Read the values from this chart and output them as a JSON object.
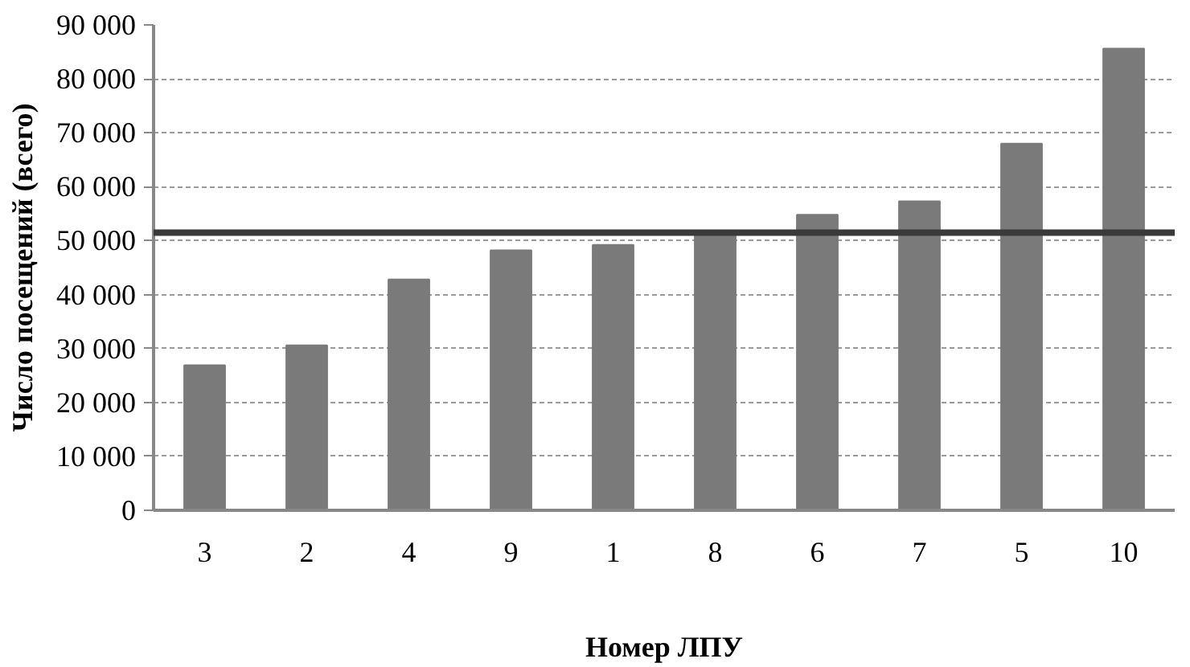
{
  "chart_data": {
    "type": "bar",
    "xlabel": "Номер ЛПУ",
    "ylabel": "Число посещений (всего)",
    "categories": [
      "3",
      "2",
      "4",
      "9",
      "1",
      "8",
      "6",
      "7",
      "5",
      "10"
    ],
    "values": [
      26900,
      30600,
      42800,
      48200,
      49200,
      51500,
      54800,
      57300,
      68000,
      85600
    ],
    "color": "#7a7a7a",
    "ylim": [
      0,
      90000
    ],
    "yticks": [
      {
        "value": 0,
        "label": "0"
      },
      {
        "value": 10000,
        "label": "10 000"
      },
      {
        "value": 20000,
        "label": "20 000"
      },
      {
        "value": 30000,
        "label": "30 000"
      },
      {
        "value": 40000,
        "label": "40 000"
      },
      {
        "value": 50000,
        "label": "50 000"
      },
      {
        "value": 60000,
        "label": "60 000"
      },
      {
        "value": 70000,
        "label": "70 000"
      },
      {
        "value": 80000,
        "label": "80 000"
      },
      {
        "value": 90000,
        "label": "90 000"
      }
    ],
    "grid": "y",
    "ref_lines": [
      {
        "axis": "y",
        "value": 51500,
        "color": "#3a3a3a",
        "line_style": "solid"
      }
    ]
  }
}
